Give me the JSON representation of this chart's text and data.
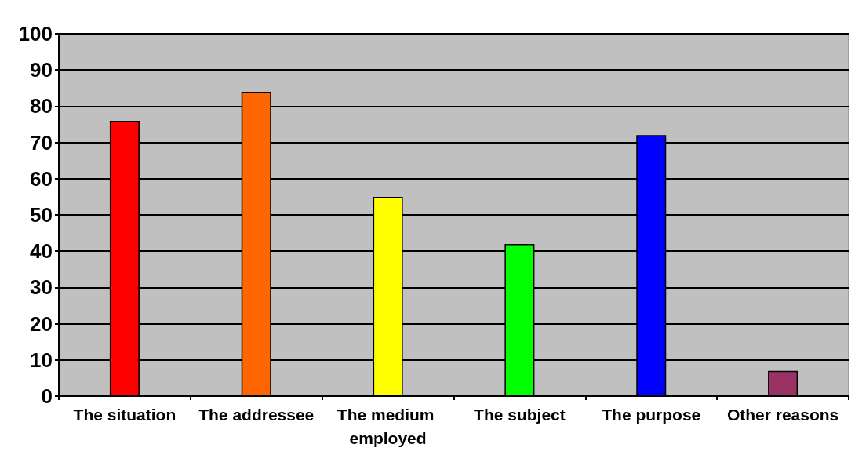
{
  "chart_data": {
    "type": "bar",
    "categories": [
      "The situation",
      "The addressee",
      "The medium employed",
      "The subject",
      "The purpose",
      "Other reasons"
    ],
    "values": [
      76,
      84,
      55,
      42,
      72,
      7
    ],
    "colors": [
      "#ff0000",
      "#ff6600",
      "#ffff00",
      "#00ff00",
      "#0000ff",
      "#993366"
    ],
    "ylim": [
      0,
      100
    ],
    "yticks": [
      0,
      10,
      20,
      30,
      40,
      50,
      60,
      70,
      80,
      90,
      100
    ],
    "grid": "y"
  }
}
